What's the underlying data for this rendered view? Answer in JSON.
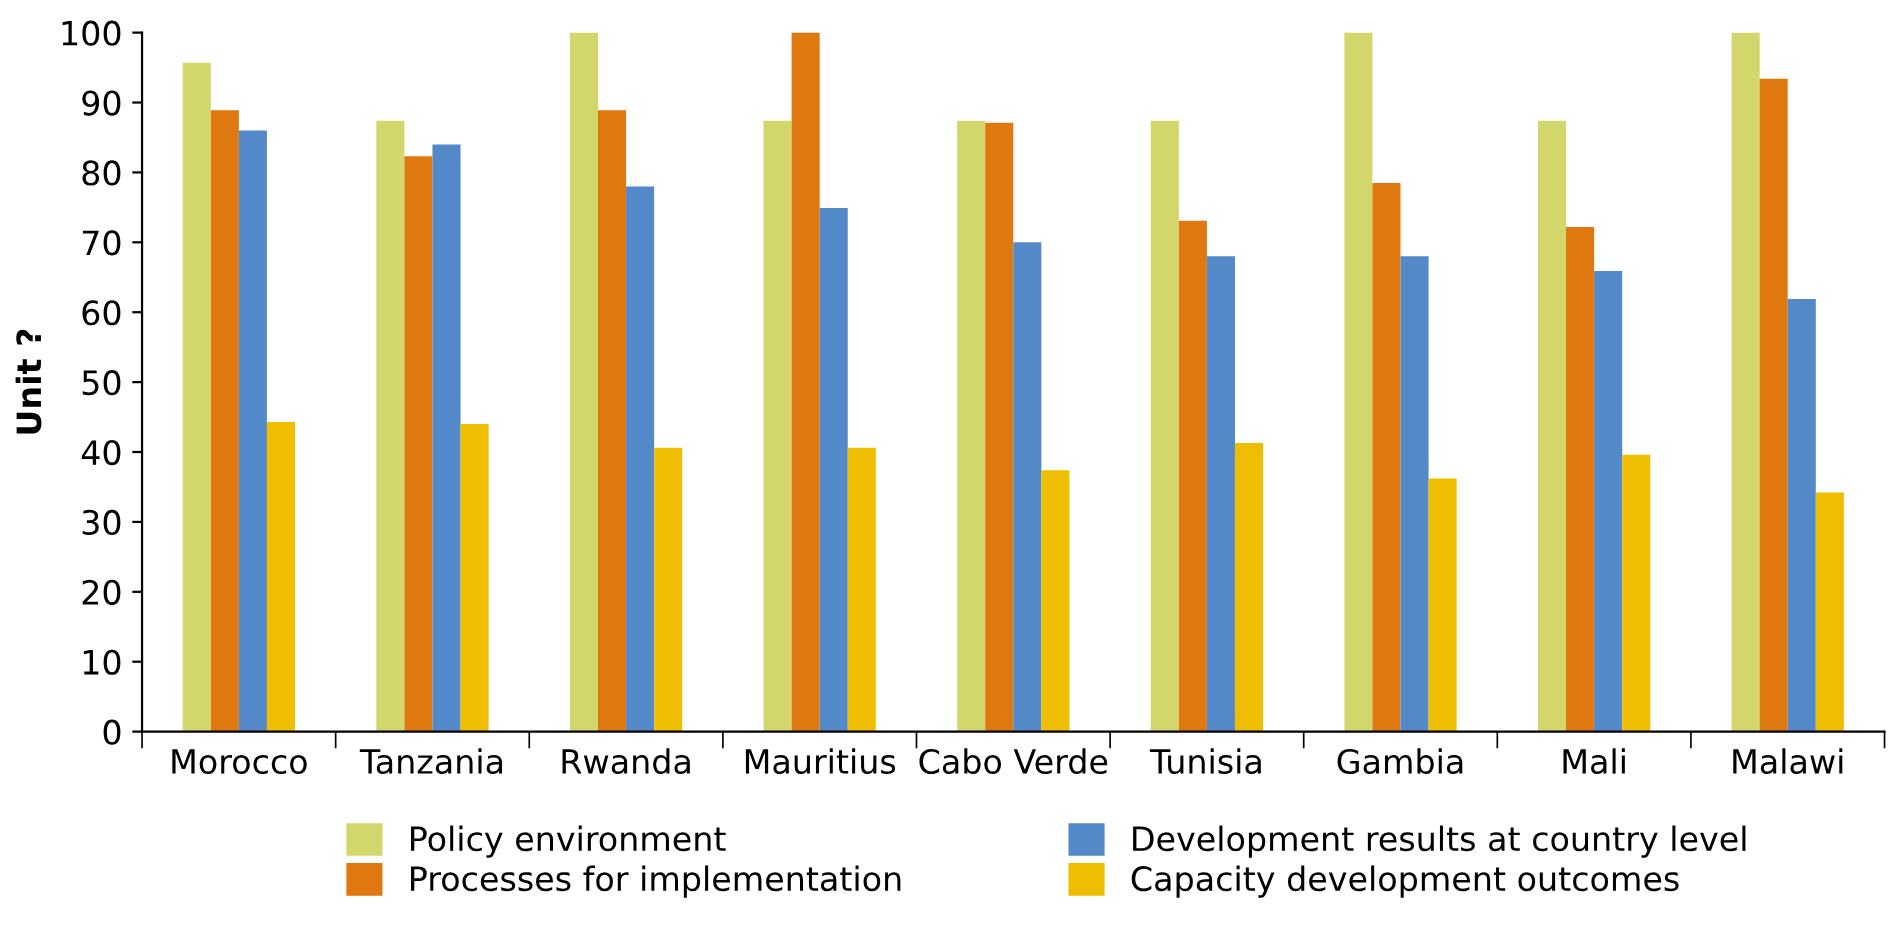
{
  "chart_data": {
    "type": "bar",
    "ylabel": "Unit ?",
    "categories": [
      "Morocco",
      "Tanzania",
      "Rwanda",
      "Mauritius",
      "Cabo Verde",
      "Tunisia",
      "Gambia",
      "Mali",
      "Malawi"
    ],
    "series": [
      {
        "name": "Policy environment",
        "color": "#d3d66b",
        "values": [
          95.7,
          87.4,
          100,
          87.4,
          87.4,
          87.4,
          100,
          87.4,
          100
        ]
      },
      {
        "name": "Processes for implementation",
        "color": "#df780e",
        "values": [
          88.9,
          82.3,
          88.9,
          100,
          87.1,
          73.1,
          78.5,
          72.2,
          93.4
        ]
      },
      {
        "name": "Development results at country level",
        "color": "#5489c9",
        "values": [
          86,
          84,
          78,
          74.9,
          70,
          68,
          68,
          65.9,
          61.9
        ]
      },
      {
        "name": "Capacity development outcomes",
        "color": "#efbe00",
        "values": [
          44.3,
          44,
          40.6,
          40.6,
          37.4,
          41.3,
          36.2,
          39.6,
          34.2
        ]
      }
    ],
    "ylim": [
      0,
      100
    ],
    "yticks": [
      0,
      10,
      20,
      30,
      40,
      50,
      60,
      70,
      80,
      90,
      100
    ],
    "grid": false,
    "legend": "bottom"
  }
}
